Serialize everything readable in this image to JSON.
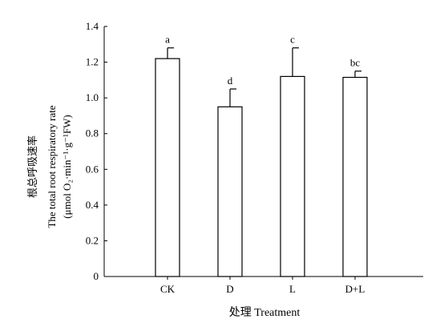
{
  "chart_data": {
    "type": "bar",
    "categories": [
      "CK",
      "D",
      "L",
      "D+L"
    ],
    "values": [
      1.22,
      0.95,
      1.12,
      1.115
    ],
    "errors": [
      0.06,
      0.1,
      0.16,
      0.035
    ],
    "significance_labels": [
      "a",
      "d",
      "c",
      "bc"
    ],
    "xlabel": "处理 Treatment",
    "ylabel_lines": [
      "根总呼吸速率",
      "The total root respiratory rate",
      "(μmol O₂·min⁻¹·g⁻¹FW)"
    ],
    "ylim": [
      0,
      1.4
    ],
    "yticks": [
      0,
      0.2,
      0.4,
      0.6,
      0.8,
      1.0,
      1.2,
      1.4
    ],
    "ytick_labels": [
      "0",
      "0.2",
      "0.4",
      "0.6",
      "0.8",
      "1.0",
      "1.2",
      "1.4"
    ],
    "grid": false,
    "legend": "none",
    "bar_fill": "#ffffff",
    "bar_stroke": "#000000"
  }
}
